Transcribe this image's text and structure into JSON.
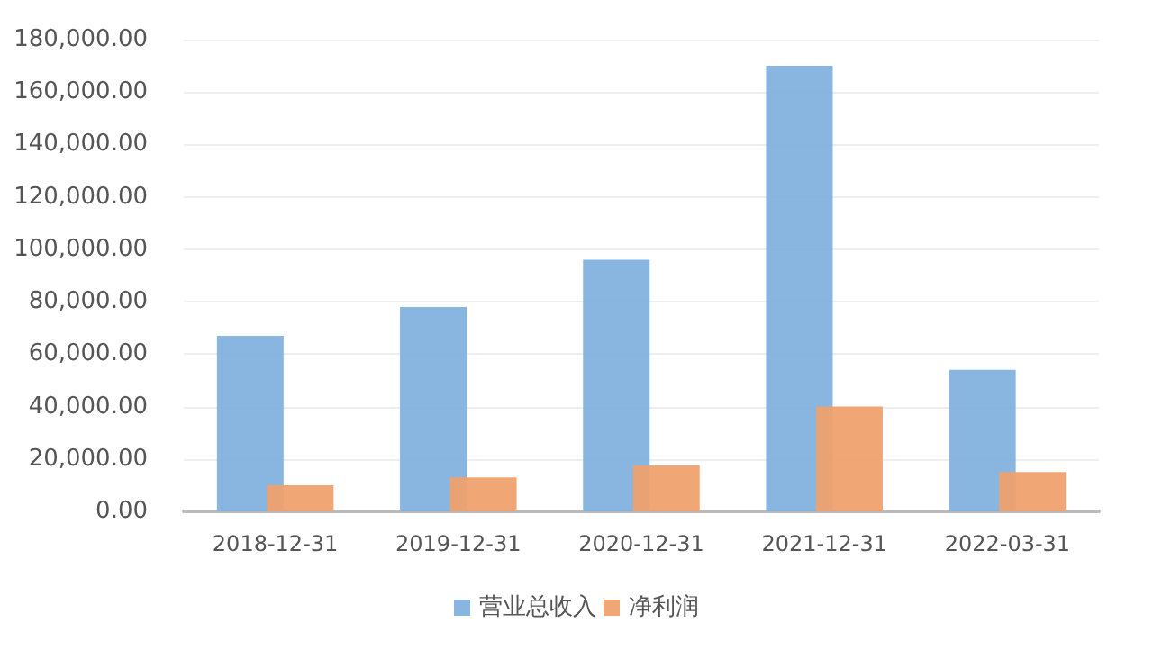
{
  "chart_data": {
    "type": "bar",
    "categories": [
      "2018-12-31",
      "2019-12-31",
      "2020-12-31",
      "2021-12-31",
      "2022-03-31"
    ],
    "series": [
      {
        "name": "营业总收入",
        "color": "#7fb0de",
        "values": [
          67000,
          78000,
          96000,
          170000,
          54000
        ]
      },
      {
        "name": "净利润",
        "color": "#f0a06a",
        "values": [
          10000,
          13000,
          17500,
          40000,
          15000
        ]
      }
    ],
    "ylim": [
      0,
      180000
    ],
    "yticks": [
      {
        "value": 0,
        "label": "0.00"
      },
      {
        "value": 20000,
        "label": "20,000.00"
      },
      {
        "value": 40000,
        "label": "40,000.00"
      },
      {
        "value": 60000,
        "label": "60,000.00"
      },
      {
        "value": 80000,
        "label": "80,000.00"
      },
      {
        "value": 100000,
        "label": "100,000.00"
      },
      {
        "value": 120000,
        "label": "120,000.00"
      },
      {
        "value": 140000,
        "label": "140,000.00"
      },
      {
        "value": 160000,
        "label": "160,000.00"
      },
      {
        "value": 180000,
        "label": "180,000.00"
      }
    ],
    "grid": "y",
    "legend": "bottom"
  }
}
